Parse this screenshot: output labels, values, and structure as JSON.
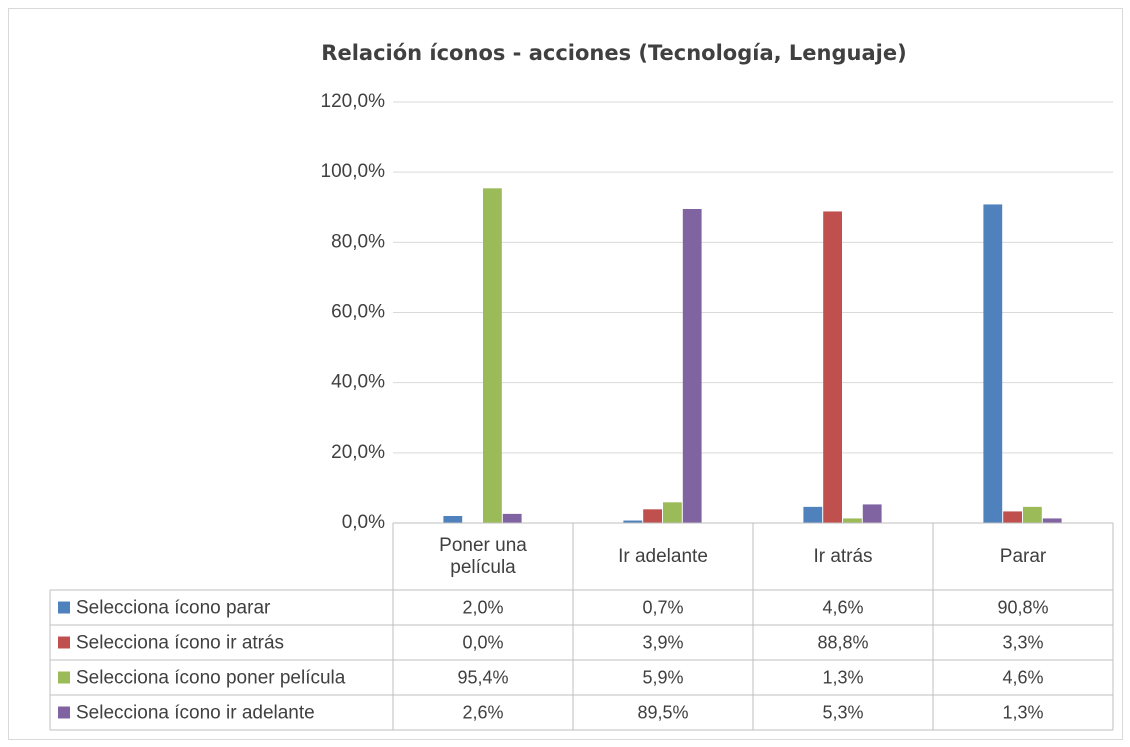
{
  "chart_data": {
    "type": "bar",
    "title": "Relación íconos - acciones (Tecnología, Lenguaje)",
    "categories": [
      "Poner una película",
      "Ir adelante",
      "Ir atrás",
      "Parar"
    ],
    "series": [
      {
        "name": "Selecciona ícono parar",
        "color": "#4f81bd",
        "values": [
          2.0,
          0.7,
          4.6,
          90.8
        ],
        "value_labels": [
          "2,0%",
          "0,7%",
          "4,6%",
          "90,8%"
        ]
      },
      {
        "name": "Selecciona ícono ir atrás",
        "color": "#c0504d",
        "values": [
          0.0,
          3.9,
          88.8,
          3.3
        ],
        "value_labels": [
          "0,0%",
          "3,9%",
          "88,8%",
          "3,3%"
        ]
      },
      {
        "name": "Selecciona ícono poner película",
        "color": "#9bbb59",
        "values": [
          95.4,
          5.9,
          1.3,
          4.6
        ],
        "value_labels": [
          "95,4%",
          "5,9%",
          "1,3%",
          "4,6%"
        ]
      },
      {
        "name": "Selecciona ícono ir adelante",
        "color": "#8064a2",
        "values": [
          2.6,
          89.5,
          5.3,
          1.3
        ],
        "value_labels": [
          "2,6%",
          "89,5%",
          "5,3%",
          "1,3%"
        ]
      }
    ],
    "ylim": [
      0,
      120
    ],
    "yticks": [
      {
        "value": 0,
        "label": "0,0%"
      },
      {
        "value": 20,
        "label": "20,0%"
      },
      {
        "value": 40,
        "label": "40,0%"
      },
      {
        "value": 60,
        "label": "60,0%"
      },
      {
        "value": 80,
        "label": "80,0%"
      },
      {
        "value": 100,
        "label": "100,0%"
      },
      {
        "value": 120,
        "label": "120,0%"
      }
    ],
    "grid": true
  }
}
